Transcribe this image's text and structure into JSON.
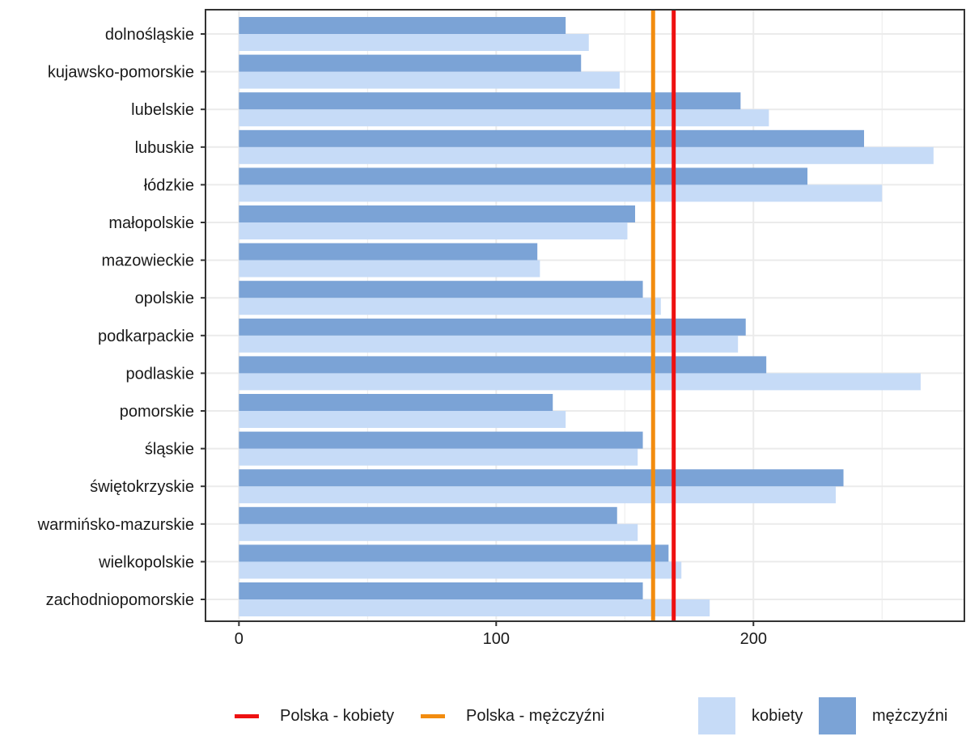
{
  "chart_data": {
    "type": "bar",
    "orientation": "horizontal",
    "categories": [
      "dolnośląskie",
      "kujawsko-pomorskie",
      "lubelskie",
      "lubuskie",
      "łódzkie",
      "małopolskie",
      "mazowieckie",
      "opolskie",
      "podkarpackie",
      "podlaskie",
      "pomorskie",
      "śląskie",
      "świętokrzyskie",
      "warmińsko-mazurskie",
      "wielkopolskie",
      "zachodniopomorskie"
    ],
    "series": [
      {
        "name": "kobiety",
        "color": "#c6dbf7",
        "values": [
          136,
          148,
          206,
          270,
          250,
          151,
          117,
          164,
          194,
          265,
          127,
          155,
          232,
          155,
          172,
          183
        ]
      },
      {
        "name": "mężczyźni",
        "color": "#7ba3d6",
        "values": [
          127,
          133,
          195,
          243,
          221,
          154,
          116,
          157,
          197,
          205,
          122,
          157,
          235,
          147,
          167,
          157
        ]
      }
    ],
    "reference_lines": [
      {
        "name": "Polska - kobiety",
        "value": 169,
        "color": "#ee1111"
      },
      {
        "name": "Polska - mężczyźni",
        "value": 161,
        "color": "#f28c0f"
      }
    ],
    "xticks": [
      "0",
      "100",
      "200"
    ],
    "xlim": [
      -13,
      282
    ],
    "grid": true,
    "legend_position": "bottom"
  },
  "legend": {
    "line1": "Polska - kobiety",
    "line2": "Polska - mężczyźni",
    "fill1": "kobiety",
    "fill2": "mężczyźni"
  }
}
